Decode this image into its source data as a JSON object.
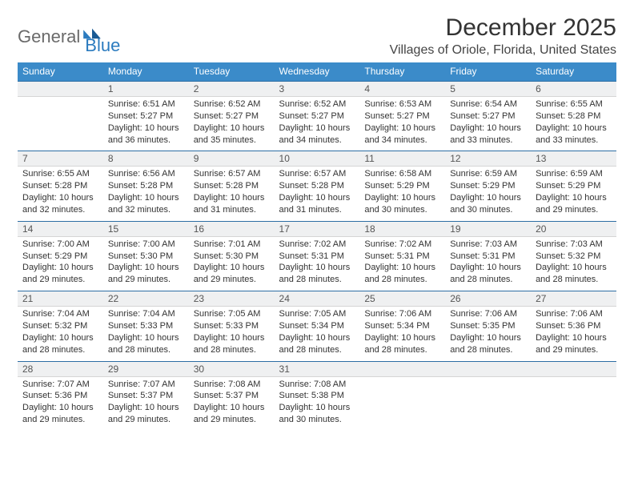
{
  "logo": {
    "main": "General",
    "sub": "Blue"
  },
  "title": "December 2025",
  "location": "Villages of Oriole, Florida, United States",
  "colors": {
    "header_bg": "#3b8bc9",
    "header_text": "#ffffff",
    "daynum_bg": "#eff0f1",
    "row_border": "#2d6ea4",
    "logo_gray": "#6a6a6a",
    "logo_blue": "#2b7bbf"
  },
  "weekdays": [
    "Sunday",
    "Monday",
    "Tuesday",
    "Wednesday",
    "Thursday",
    "Friday",
    "Saturday"
  ],
  "weeks": [
    {
      "nums": [
        "",
        "1",
        "2",
        "3",
        "4",
        "5",
        "6"
      ],
      "cells": [
        [],
        [
          "Sunrise: 6:51 AM",
          "Sunset: 5:27 PM",
          "Daylight: 10 hours",
          "and 36 minutes."
        ],
        [
          "Sunrise: 6:52 AM",
          "Sunset: 5:27 PM",
          "Daylight: 10 hours",
          "and 35 minutes."
        ],
        [
          "Sunrise: 6:52 AM",
          "Sunset: 5:27 PM",
          "Daylight: 10 hours",
          "and 34 minutes."
        ],
        [
          "Sunrise: 6:53 AM",
          "Sunset: 5:27 PM",
          "Daylight: 10 hours",
          "and 34 minutes."
        ],
        [
          "Sunrise: 6:54 AM",
          "Sunset: 5:27 PM",
          "Daylight: 10 hours",
          "and 33 minutes."
        ],
        [
          "Sunrise: 6:55 AM",
          "Sunset: 5:28 PM",
          "Daylight: 10 hours",
          "and 33 minutes."
        ]
      ]
    },
    {
      "nums": [
        "7",
        "8",
        "9",
        "10",
        "11",
        "12",
        "13"
      ],
      "cells": [
        [
          "Sunrise: 6:55 AM",
          "Sunset: 5:28 PM",
          "Daylight: 10 hours",
          "and 32 minutes."
        ],
        [
          "Sunrise: 6:56 AM",
          "Sunset: 5:28 PM",
          "Daylight: 10 hours",
          "and 32 minutes."
        ],
        [
          "Sunrise: 6:57 AM",
          "Sunset: 5:28 PM",
          "Daylight: 10 hours",
          "and 31 minutes."
        ],
        [
          "Sunrise: 6:57 AM",
          "Sunset: 5:28 PM",
          "Daylight: 10 hours",
          "and 31 minutes."
        ],
        [
          "Sunrise: 6:58 AM",
          "Sunset: 5:29 PM",
          "Daylight: 10 hours",
          "and 30 minutes."
        ],
        [
          "Sunrise: 6:59 AM",
          "Sunset: 5:29 PM",
          "Daylight: 10 hours",
          "and 30 minutes."
        ],
        [
          "Sunrise: 6:59 AM",
          "Sunset: 5:29 PM",
          "Daylight: 10 hours",
          "and 29 minutes."
        ]
      ]
    },
    {
      "nums": [
        "14",
        "15",
        "16",
        "17",
        "18",
        "19",
        "20"
      ],
      "cells": [
        [
          "Sunrise: 7:00 AM",
          "Sunset: 5:29 PM",
          "Daylight: 10 hours",
          "and 29 minutes."
        ],
        [
          "Sunrise: 7:00 AM",
          "Sunset: 5:30 PM",
          "Daylight: 10 hours",
          "and 29 minutes."
        ],
        [
          "Sunrise: 7:01 AM",
          "Sunset: 5:30 PM",
          "Daylight: 10 hours",
          "and 29 minutes."
        ],
        [
          "Sunrise: 7:02 AM",
          "Sunset: 5:31 PM",
          "Daylight: 10 hours",
          "and 28 minutes."
        ],
        [
          "Sunrise: 7:02 AM",
          "Sunset: 5:31 PM",
          "Daylight: 10 hours",
          "and 28 minutes."
        ],
        [
          "Sunrise: 7:03 AM",
          "Sunset: 5:31 PM",
          "Daylight: 10 hours",
          "and 28 minutes."
        ],
        [
          "Sunrise: 7:03 AM",
          "Sunset: 5:32 PM",
          "Daylight: 10 hours",
          "and 28 minutes."
        ]
      ]
    },
    {
      "nums": [
        "21",
        "22",
        "23",
        "24",
        "25",
        "26",
        "27"
      ],
      "cells": [
        [
          "Sunrise: 7:04 AM",
          "Sunset: 5:32 PM",
          "Daylight: 10 hours",
          "and 28 minutes."
        ],
        [
          "Sunrise: 7:04 AM",
          "Sunset: 5:33 PM",
          "Daylight: 10 hours",
          "and 28 minutes."
        ],
        [
          "Sunrise: 7:05 AM",
          "Sunset: 5:33 PM",
          "Daylight: 10 hours",
          "and 28 minutes."
        ],
        [
          "Sunrise: 7:05 AM",
          "Sunset: 5:34 PM",
          "Daylight: 10 hours",
          "and 28 minutes."
        ],
        [
          "Sunrise: 7:06 AM",
          "Sunset: 5:34 PM",
          "Daylight: 10 hours",
          "and 28 minutes."
        ],
        [
          "Sunrise: 7:06 AM",
          "Sunset: 5:35 PM",
          "Daylight: 10 hours",
          "and 28 minutes."
        ],
        [
          "Sunrise: 7:06 AM",
          "Sunset: 5:36 PM",
          "Daylight: 10 hours",
          "and 29 minutes."
        ]
      ]
    },
    {
      "nums": [
        "28",
        "29",
        "30",
        "31",
        "",
        "",
        ""
      ],
      "cells": [
        [
          "Sunrise: 7:07 AM",
          "Sunset: 5:36 PM",
          "Daylight: 10 hours",
          "and 29 minutes."
        ],
        [
          "Sunrise: 7:07 AM",
          "Sunset: 5:37 PM",
          "Daylight: 10 hours",
          "and 29 minutes."
        ],
        [
          "Sunrise: 7:08 AM",
          "Sunset: 5:37 PM",
          "Daylight: 10 hours",
          "and 29 minutes."
        ],
        [
          "Sunrise: 7:08 AM",
          "Sunset: 5:38 PM",
          "Daylight: 10 hours",
          "and 30 minutes."
        ],
        [],
        [],
        []
      ]
    }
  ]
}
